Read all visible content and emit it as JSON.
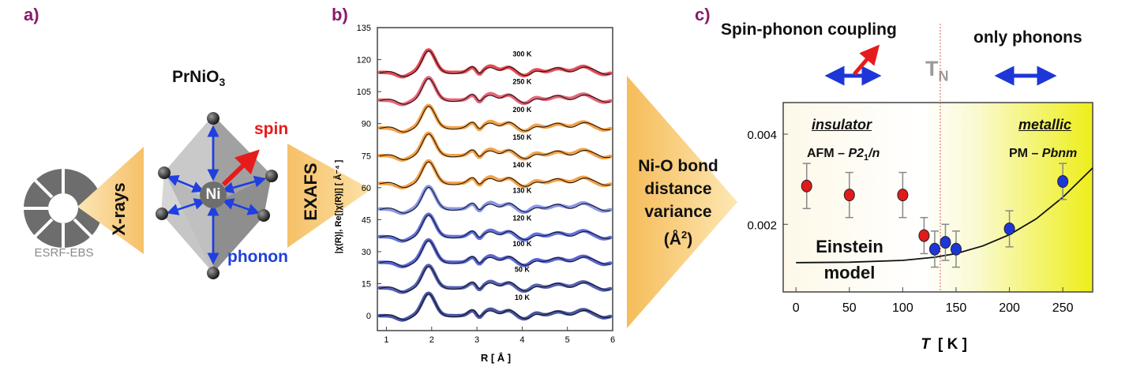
{
  "panel_a": {
    "label": "a)",
    "compound": "PrNiO",
    "compound_sub": "3",
    "source": "ESRF-EBS",
    "xray_label": "X-rays",
    "exafs_label": "EXAFS",
    "center_atom": "Ni",
    "spin_label": "spin",
    "phonon_label": "phonon"
  },
  "panel_b": {
    "label": "b)",
    "arrow_text_line1": "Ni-O bond",
    "arrow_text_line2": "distance",
    "arrow_text_line3": "variance",
    "arrow_text_line4": "(Å",
    "arrow_text_sup": "2",
    "arrow_text_tail": ")"
  },
  "panel_c": {
    "label": "c)",
    "spin_phonon_label": "Spin-phonon coupling",
    "only_phonons_label": "only phonons",
    "tn_label": "T",
    "tn_sub": "N",
    "insulator_label": "insulator",
    "metallic_label": "metallic",
    "afm_label": "AFM – ",
    "afm_group": "P2",
    "afm_group_sub": "1",
    "afm_group_tail": "/n",
    "pm_label": "PM – ",
    "pm_group": "Pbnm",
    "einstein_line1": "Einstein",
    "einstein_line2": "model"
  },
  "chart_data": [
    {
      "type": "line",
      "id": "exafs",
      "xlabel": "R   [ Å ]",
      "ylabel": "|χ(R)|, Re[|χ(R)|]   [ Å⁻⁴ ]",
      "xlim": [
        0.8,
        6.0
      ],
      "ylim": [
        -7,
        135
      ],
      "xticks": [
        1,
        2,
        3,
        4,
        5,
        6
      ],
      "yticks": [
        0,
        15,
        30,
        45,
        60,
        75,
        90,
        105,
        120,
        135
      ],
      "series": [
        {
          "name": "10 K",
          "offset": 0,
          "color": "#1c2b8c"
        },
        {
          "name": "50 K",
          "offset": 13,
          "color": "#2b3a9e"
        },
        {
          "name": "100 K",
          "offset": 25,
          "color": "#2f3fc8"
        },
        {
          "name": "120 K",
          "offset": 37,
          "color": "#3c4fd2"
        },
        {
          "name": "130 K",
          "offset": 50,
          "color": "#6b7ce0"
        },
        {
          "name": "140 K",
          "offset": 62,
          "color": "#f08a1c"
        },
        {
          "name": "150 K",
          "offset": 75,
          "color": "#f08a1c"
        },
        {
          "name": "200 K",
          "offset": 88,
          "color": "#f08a1c"
        },
        {
          "name": "250 K",
          "offset": 101,
          "color": "#e04055"
        },
        {
          "name": "300 K",
          "offset": 114,
          "color": "#dd1f2a"
        }
      ]
    },
    {
      "type": "scatter",
      "id": "variance",
      "xlabel": "T",
      "xunit": "[ K ]",
      "ylabel": "",
      "xlim": [
        -12,
        278
      ],
      "ylim": [
        0.0005,
        0.0047
      ],
      "xticks": [
        0,
        50,
        100,
        150,
        200,
        250
      ],
      "yticks": [
        0.002,
        0.004
      ],
      "ytick_labels": [
        "0.002",
        "0.004"
      ],
      "tn": 130,
      "points": [
        {
          "x": 10,
          "y": 0.00285,
          "err": 0.0005,
          "color": "#e01b1b"
        },
        {
          "x": 50,
          "y": 0.00265,
          "err": 0.0005,
          "color": "#e01b1b"
        },
        {
          "x": 100,
          "y": 0.00265,
          "err": 0.0005,
          "color": "#e01b1b"
        },
        {
          "x": 120,
          "y": 0.00175,
          "err": 0.0004,
          "color": "#e01b1b"
        },
        {
          "x": 130,
          "y": 0.00145,
          "err": 0.0004,
          "color": "#1d36d8"
        },
        {
          "x": 140,
          "y": 0.0016,
          "err": 0.0004,
          "color": "#1d36d8"
        },
        {
          "x": 150,
          "y": 0.00145,
          "err": 0.0004,
          "color": "#1d36d8"
        },
        {
          "x": 200,
          "y": 0.0019,
          "err": 0.0004,
          "color": "#1d36d8"
        },
        {
          "x": 250,
          "y": 0.00295,
          "err": 0.0004,
          "color": "#1d36d8"
        }
      ],
      "model": {
        "name": "Einstein model",
        "x": [
          0,
          50,
          100,
          130,
          150,
          175,
          200,
          225,
          250,
          278
        ],
        "y": [
          0.00115,
          0.00116,
          0.0012,
          0.00127,
          0.00135,
          0.00152,
          0.00177,
          0.00212,
          0.0026,
          0.00325
        ]
      }
    }
  ]
}
